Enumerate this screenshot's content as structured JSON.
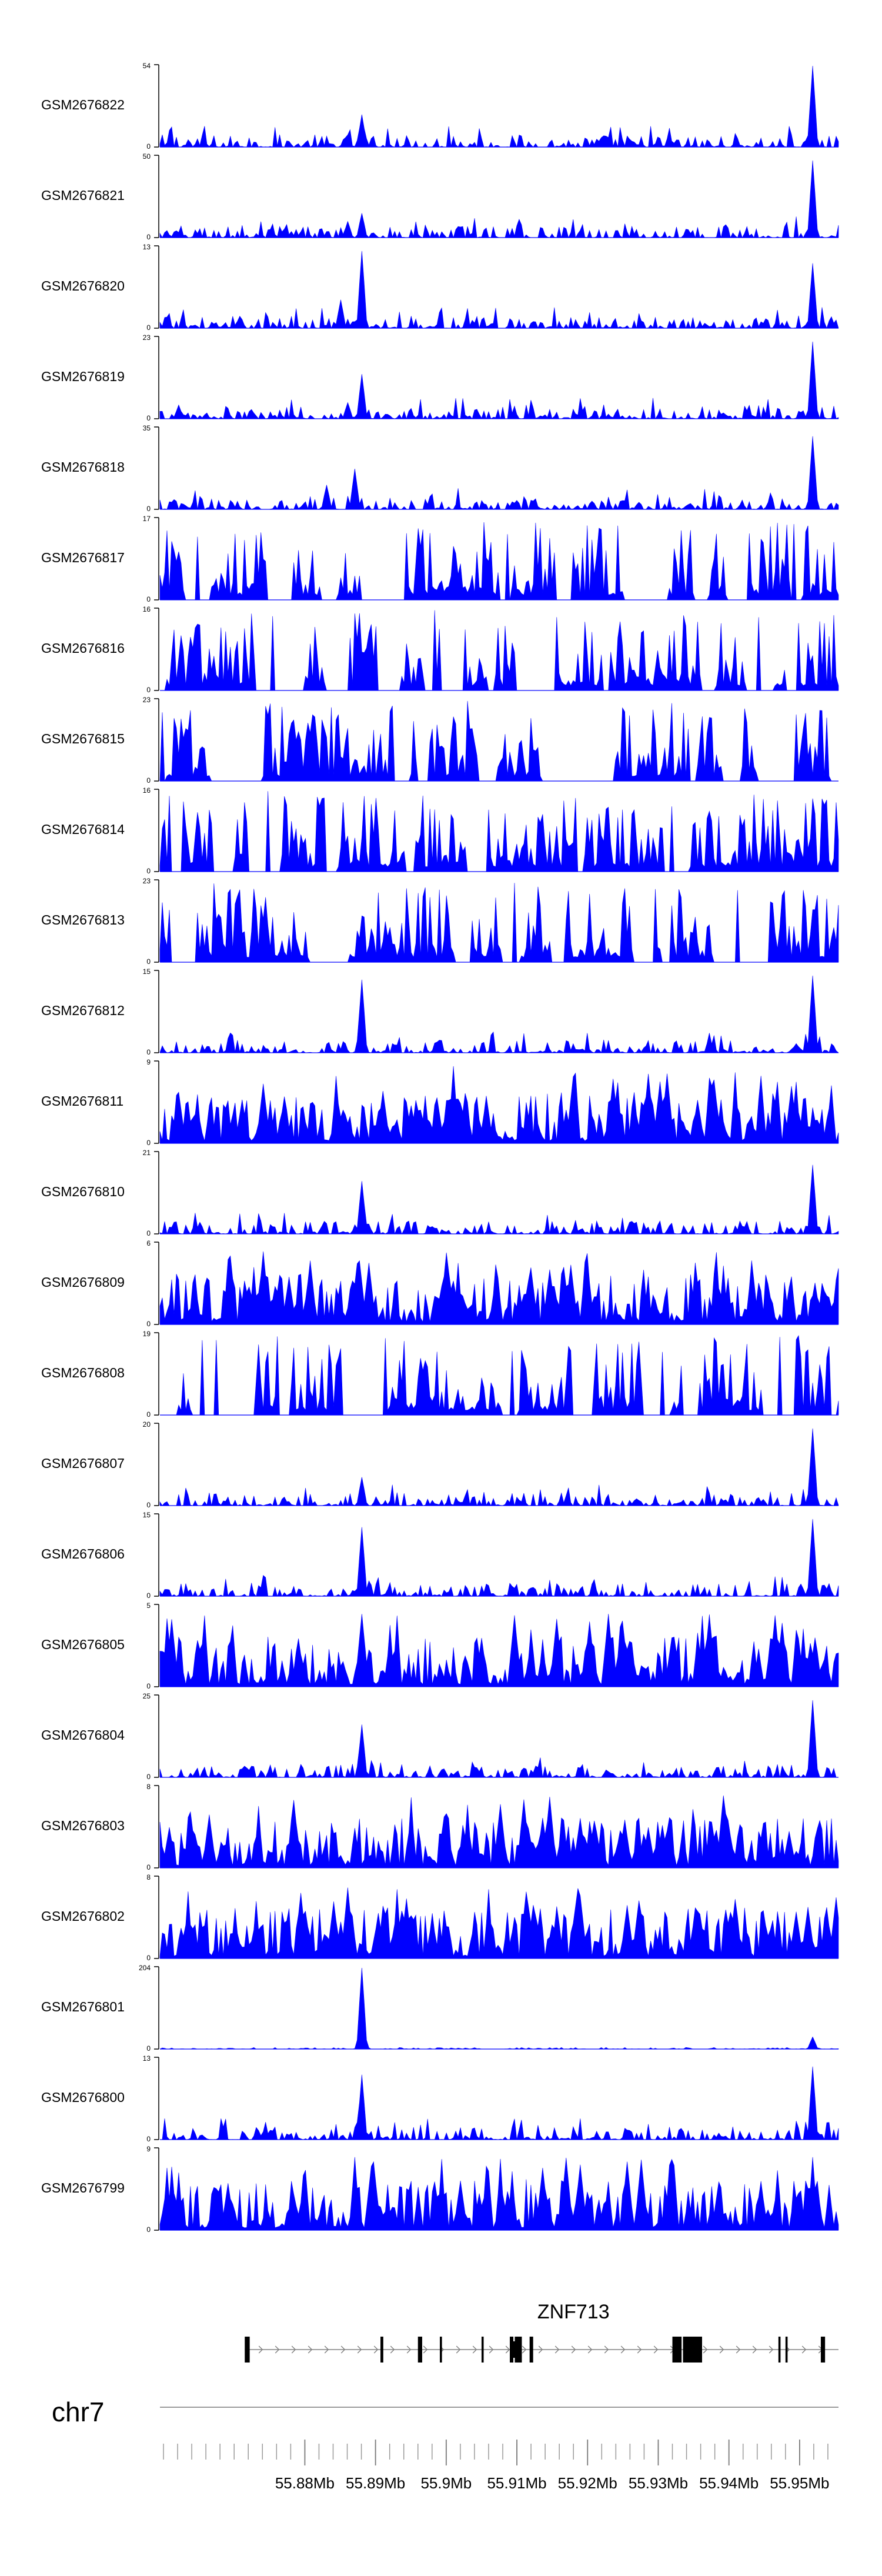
{
  "chart_data": {
    "type": "area",
    "chromosome": "chr7",
    "gene": {
      "name": "ZNF713",
      "strand": "+",
      "start_mb": 55.8715,
      "end_mb": 55.9555,
      "exons_mb": [
        [
          55.8715,
          55.8722
        ],
        [
          55.8907,
          55.8911
        ],
        [
          55.896,
          55.8966
        ],
        [
          55.8991,
          55.8994
        ],
        [
          55.905,
          55.9053
        ],
        [
          55.909,
          55.9095
        ],
        [
          55.9097,
          55.9107
        ],
        [
          55.9118,
          55.9123
        ],
        [
          55.932,
          55.9333
        ],
        [
          55.9335,
          55.9362
        ],
        [
          55.947,
          55.9473
        ],
        [
          55.948,
          55.9483
        ],
        [
          55.953,
          55.9536
        ]
      ],
      "utr_mb": [
        [
          55.9091,
          55.9106
        ]
      ]
    },
    "x_axis": {
      "range_mb": [
        55.8595,
        55.9555
      ],
      "tick_labels": [
        "55.88Mb",
        "55.89Mb",
        "55.9Mb",
        "55.91Mb",
        "55.92Mb",
        "55.93Mb",
        "55.94Mb",
        "55.95Mb"
      ],
      "tick_values_mb": [
        55.88,
        55.89,
        55.9,
        55.91,
        55.92,
        55.93,
        55.94,
        55.95
      ],
      "minor_tick_step_mb": 0.002
    },
    "color": "#0000ff",
    "tracks": [
      {
        "name": "GSM2676822",
        "ymax": "54",
        "ymin": "0",
        "ymax_value": 54,
        "pattern": "peaked",
        "peaks": [
          [
            55.888,
            0.4
          ],
          [
            55.886,
            0.15
          ],
          [
            55.952,
            1.0
          ]
        ]
      },
      {
        "name": "GSM2676821",
        "ymax": "50",
        "ymin": "0",
        "ymax_value": 50,
        "pattern": "peaked",
        "peaks": [
          [
            55.888,
            0.3
          ],
          [
            55.886,
            0.2
          ],
          [
            55.952,
            0.95
          ]
        ]
      },
      {
        "name": "GSM2676820",
        "ymax": "13",
        "ymin": "0",
        "ymax_value": 13,
        "pattern": "peaked",
        "peaks": [
          [
            55.888,
            0.95
          ],
          [
            55.885,
            0.35
          ],
          [
            55.952,
            0.8
          ]
        ]
      },
      {
        "name": "GSM2676819",
        "ymax": "23",
        "ymin": "0",
        "ymax_value": 23,
        "pattern": "peaked",
        "peaks": [
          [
            55.888,
            0.55
          ],
          [
            55.886,
            0.2
          ],
          [
            55.952,
            0.95
          ]
        ]
      },
      {
        "name": "GSM2676818",
        "ymax": "35",
        "ymin": "0",
        "ymax_value": 35,
        "pattern": "peaked",
        "peaks": [
          [
            55.887,
            0.5
          ],
          [
            55.883,
            0.3
          ],
          [
            55.952,
            0.9
          ]
        ]
      },
      {
        "name": "GSM2676817",
        "ymax": "17",
        "ymin": "0",
        "ymax_value": 17,
        "pattern": "sparse",
        "peaks": []
      },
      {
        "name": "GSM2676816",
        "ymax": "16",
        "ymin": "0",
        "ymax_value": 16,
        "pattern": "sparse",
        "peaks": []
      },
      {
        "name": "GSM2676815",
        "ymax": "23",
        "ymin": "0",
        "ymax_value": 23,
        "pattern": "sparse",
        "peaks": []
      },
      {
        "name": "GSM2676814",
        "ymax": "16",
        "ymin": "0",
        "ymax_value": 16,
        "pattern": "sparse",
        "peaks": []
      },
      {
        "name": "GSM2676813",
        "ymax": "23",
        "ymin": "0",
        "ymax_value": 23,
        "pattern": "sparse",
        "peaks": []
      },
      {
        "name": "GSM2676812",
        "ymax": "15",
        "ymin": "0",
        "ymax_value": 15,
        "pattern": "peaked",
        "peaks": [
          [
            55.888,
            0.9
          ],
          [
            55.952,
            0.95
          ]
        ]
      },
      {
        "name": "GSM2676811",
        "ymax": "9",
        "ymin": "0",
        "ymax_value": 9,
        "pattern": "dense",
        "peaks": [
          [
            55.901,
            0.95
          ]
        ]
      },
      {
        "name": "GSM2676810",
        "ymax": "21",
        "ymin": "0",
        "ymax_value": 21,
        "pattern": "peaked",
        "peaks": [
          [
            55.888,
            0.65
          ],
          [
            55.952,
            0.85
          ]
        ]
      },
      {
        "name": "GSM2676809",
        "ymax": "6",
        "ymin": "0",
        "ymax_value": 6,
        "pattern": "dense",
        "peaks": []
      },
      {
        "name": "GSM2676808",
        "ymax": "19",
        "ymin": "0",
        "ymax_value": 19,
        "pattern": "sparse",
        "peaks": []
      },
      {
        "name": "GSM2676807",
        "ymax": "20",
        "ymin": "0",
        "ymax_value": 20,
        "pattern": "peaked",
        "peaks": [
          [
            55.888,
            0.35
          ],
          [
            55.952,
            0.95
          ]
        ]
      },
      {
        "name": "GSM2676806",
        "ymax": "15",
        "ymin": "0",
        "ymax_value": 15,
        "pattern": "peaked",
        "peaks": [
          [
            55.888,
            0.85
          ],
          [
            55.952,
            0.95
          ]
        ]
      },
      {
        "name": "GSM2676805",
        "ymax": "5",
        "ymin": "0",
        "ymax_value": 5,
        "pattern": "dense",
        "peaks": []
      },
      {
        "name": "GSM2676804",
        "ymax": "25",
        "ymin": "0",
        "ymax_value": 25,
        "pattern": "peaked",
        "peaks": [
          [
            55.888,
            0.65
          ],
          [
            55.952,
            0.95
          ]
        ]
      },
      {
        "name": "GSM2676803",
        "ymax": "8",
        "ymin": "0",
        "ymax_value": 8,
        "pattern": "dense",
        "peaks": []
      },
      {
        "name": "GSM2676802",
        "ymax": "8",
        "ymin": "0",
        "ymax_value": 8,
        "pattern": "dense",
        "peaks": []
      },
      {
        "name": "GSM2676801",
        "ymax": "204",
        "ymin": "0",
        "ymax_value": 204,
        "pattern": "flat",
        "peaks": [
          [
            55.888,
            1.0
          ],
          [
            55.952,
            0.15
          ]
        ]
      },
      {
        "name": "GSM2676800",
        "ymax": "13",
        "ymin": "0",
        "ymax_value": 13,
        "pattern": "peaked",
        "peaks": [
          [
            55.888,
            0.8
          ],
          [
            55.952,
            0.9
          ]
        ]
      },
      {
        "name": "GSM2676799",
        "ymax": "9",
        "ymin": "0",
        "ymax_value": 9,
        "pattern": "dense",
        "peaks": [
          [
            55.887,
            0.9
          ],
          [
            55.952,
            0.9
          ]
        ]
      }
    ]
  }
}
